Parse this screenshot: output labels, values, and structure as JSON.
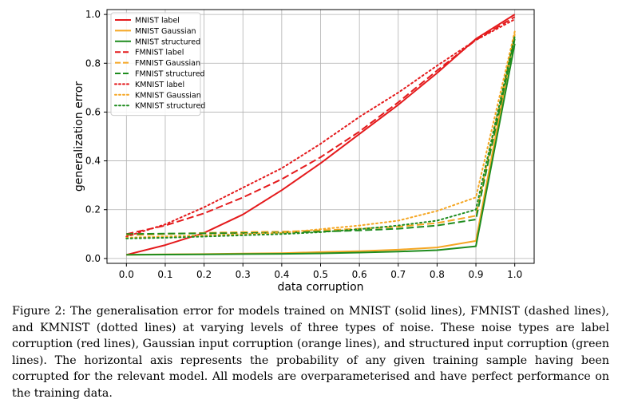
{
  "chart_data": {
    "type": "line",
    "xlabel": "data corruption",
    "ylabel": "generalization error",
    "xlim": [
      -0.05,
      1.05
    ],
    "ylim": [
      -0.02,
      1.02
    ],
    "x_ticks": [
      "0.0",
      "0.1",
      "0.2",
      "0.3",
      "0.4",
      "0.5",
      "0.6",
      "0.7",
      "0.8",
      "0.9",
      "1.0"
    ],
    "y_ticks": [
      "0.0",
      "0.2",
      "0.4",
      "0.6",
      "0.8",
      "1.0"
    ],
    "grid": true,
    "legend_position": "top-left",
    "x": [
      0.0,
      0.1,
      0.2,
      0.3,
      0.4,
      0.5,
      0.6,
      0.7,
      0.8,
      0.9,
      1.0
    ],
    "series": [
      {
        "name": "MNIST label",
        "color": "#e41a1c",
        "style": "solid",
        "values": [
          0.015,
          0.055,
          0.105,
          0.18,
          0.28,
          0.39,
          0.51,
          0.63,
          0.76,
          0.9,
          1.0
        ]
      },
      {
        "name": "MNIST Gaussian",
        "color": "#f5a623",
        "style": "solid",
        "values": [
          0.015,
          0.017,
          0.018,
          0.02,
          0.022,
          0.026,
          0.03,
          0.036,
          0.045,
          0.072,
          0.92
        ]
      },
      {
        "name": "MNIST structured",
        "color": "#1e8c1e",
        "style": "solid",
        "values": [
          0.015,
          0.016,
          0.017,
          0.018,
          0.019,
          0.021,
          0.024,
          0.028,
          0.034,
          0.05,
          0.88
        ]
      },
      {
        "name": "FMNIST label",
        "color": "#e41a1c",
        "style": "dashed",
        "values": [
          0.1,
          0.135,
          0.185,
          0.25,
          0.325,
          0.415,
          0.52,
          0.64,
          0.77,
          0.895,
          0.99
        ]
      },
      {
        "name": "FMNIST Gaussian",
        "color": "#f5a623",
        "style": "dashed",
        "values": [
          0.095,
          0.1,
          0.105,
          0.108,
          0.11,
          0.115,
          0.122,
          0.13,
          0.145,
          0.175,
          0.92
        ]
      },
      {
        "name": "FMNIST structured",
        "color": "#1e8c1e",
        "style": "dashed",
        "values": [
          0.1,
          0.102,
          0.103,
          0.104,
          0.106,
          0.11,
          0.115,
          0.122,
          0.135,
          0.16,
          0.9
        ]
      },
      {
        "name": "KMNIST label",
        "color": "#e41a1c",
        "style": "dotted",
        "values": [
          0.09,
          0.14,
          0.21,
          0.29,
          0.37,
          0.47,
          0.58,
          0.68,
          0.79,
          0.895,
          0.98
        ]
      },
      {
        "name": "KMNIST Gaussian",
        "color": "#f5a623",
        "style": "dotted",
        "values": [
          0.085,
          0.09,
          0.095,
          0.1,
          0.105,
          0.12,
          0.135,
          0.155,
          0.195,
          0.25,
          0.93
        ]
      },
      {
        "name": "KMNIST structured",
        "color": "#1e8c1e",
        "style": "dotted",
        "values": [
          0.082,
          0.085,
          0.09,
          0.095,
          0.1,
          0.108,
          0.12,
          0.135,
          0.155,
          0.2,
          0.91
        ]
      }
    ]
  },
  "caption": "Figure 2: The generalisation error for models trained on MNIST (solid lines), FMNIST (dashed lines), and KMNIST (dotted lines) at varying levels of three types of noise. These noise types are label corruption (red lines), Gaussian input corruption (orange lines), and structured input corruption (green lines). The horizontal axis represents the probability of any given training sample having been corrupted for the relevant model. All models are overparameterised and have perfect performance on the training data."
}
